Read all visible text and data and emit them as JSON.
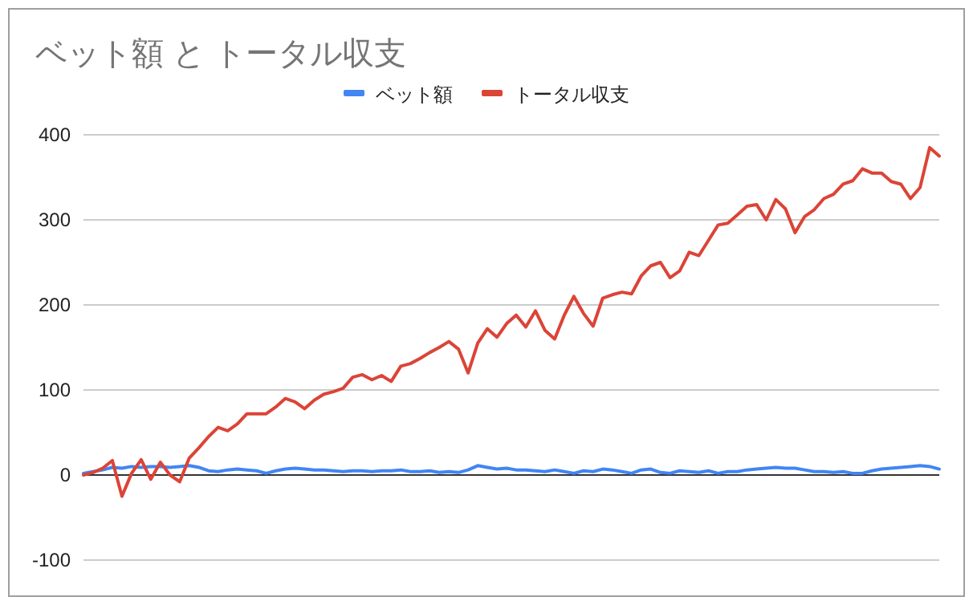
{
  "chart_data": {
    "type": "line",
    "title": "ベット額 と トータル収支",
    "categories": [
      null,
      null,
      null,
      null,
      null,
      null,
      null,
      null,
      null,
      null,
      null,
      null,
      null,
      null,
      null,
      null,
      null,
      null,
      null,
      null,
      null,
      null,
      null,
      null,
      null,
      null,
      null,
      null,
      null,
      null,
      null,
      null,
      null,
      null,
      null,
      null,
      null,
      null,
      null,
      null,
      null,
      null,
      null,
      null,
      null,
      null,
      null,
      null,
      null,
      null,
      null,
      null,
      null,
      null,
      null,
      null,
      null,
      null,
      null,
      null,
      null,
      null,
      null,
      null,
      null,
      null,
      null,
      null,
      null,
      null,
      null,
      null,
      null,
      null,
      null,
      null,
      null,
      null,
      null,
      null,
      null,
      null,
      null,
      null,
      null,
      null,
      null,
      null,
      null,
      null
    ],
    "series": [
      {
        "name": "ベット額",
        "color": "#4285f4",
        "values": [
          2,
          4,
          6,
          9,
          8,
          10,
          9,
          10,
          10,
          9,
          10,
          11,
          9,
          5,
          4,
          6,
          7,
          6,
          5,
          2,
          5,
          7,
          8,
          7,
          6,
          6,
          5,
          4,
          5,
          5,
          4,
          5,
          5,
          6,
          4,
          4,
          5,
          3,
          4,
          3,
          6,
          11,
          9,
          7,
          8,
          6,
          6,
          5,
          4,
          6,
          4,
          2,
          5,
          4,
          7,
          6,
          4,
          2,
          6,
          7,
          3,
          2,
          5,
          4,
          3,
          5,
          2,
          4,
          4,
          6,
          7,
          8,
          9,
          8,
          8,
          6,
          4,
          4,
          3,
          4,
          2,
          2,
          5,
          7,
          8,
          9,
          10,
          11,
          10,
          7
        ]
      },
      {
        "name": "トータル収支",
        "color": "#db4437",
        "values": [
          0,
          3,
          8,
          17,
          -25,
          2,
          18,
          -5,
          15,
          0,
          -8,
          20,
          32,
          45,
          56,
          52,
          60,
          72,
          72,
          72,
          80,
          90,
          86,
          78,
          88,
          95,
          98,
          102,
          115,
          118,
          112,
          117,
          110,
          128,
          131,
          137,
          144,
          150,
          157,
          148,
          120,
          155,
          172,
          162,
          178,
          188,
          174,
          193,
          170,
          160,
          188,
          210,
          190,
          175,
          208,
          212,
          215,
          213,
          234,
          246,
          250,
          232,
          240,
          262,
          258,
          276,
          294,
          296,
          306,
          316,
          318,
          300,
          324,
          313,
          285,
          304,
          312,
          325,
          330,
          342,
          346,
          360,
          355,
          355,
          345,
          342,
          325,
          338,
          385,
          375
        ]
      }
    ],
    "ylim": [
      -100,
      400
    ],
    "yticks": [
      -100,
      0,
      100,
      200,
      300,
      400
    ],
    "grid": "y",
    "legend": "top",
    "marker": "none",
    "line_style": "solid",
    "tick_labels": "y"
  }
}
